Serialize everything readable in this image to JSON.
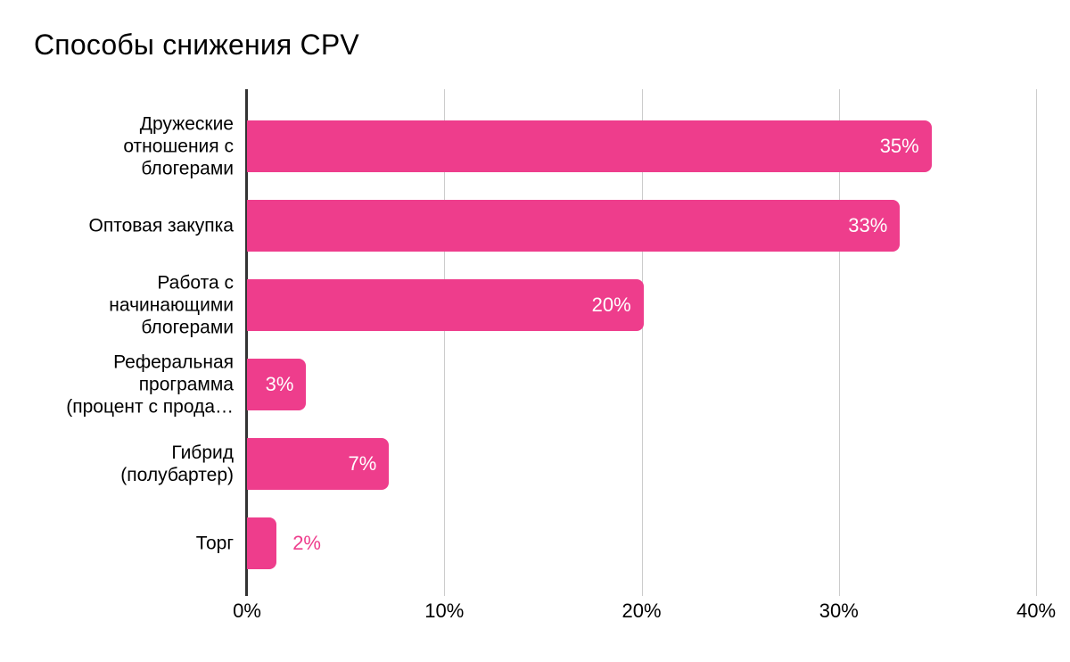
{
  "title": "Способы снижения CPV",
  "chart_data": {
    "type": "bar",
    "orientation": "horizontal",
    "title": "Способы снижения CPV",
    "categories": [
      "Дружеские отношения с блогерами",
      "Оптовая закупка",
      "Работа с начинающими блогерами",
      "Реферальная программа (процент с прода…",
      "Гибрид (полубартер)",
      "Торг"
    ],
    "category_display_lines": [
      "Дружеские\nотношения с\nблогерами",
      "Оптовая закупка",
      "Работа с\nначинающими\nблогерами",
      "Реферальная\nпрограмма\n(процент с прода…",
      "Гибрид\n(полубартер)",
      "Торг"
    ],
    "values": [
      35,
      33,
      20,
      3,
      7,
      2
    ],
    "value_labels": [
      "35%",
      "33%",
      "20%",
      "3%",
      "7%",
      "2%"
    ],
    "bar_lengths_pct": [
      34.7,
      33.1,
      20.1,
      3.0,
      7.2,
      1.5
    ],
    "value_label_position": [
      "inside",
      "inside",
      "inside",
      "inside",
      "inside",
      "outside"
    ],
    "xlabel": "",
    "ylabel": "",
    "x_ticks": [
      "0%",
      "10%",
      "20%",
      "30%",
      "40%"
    ],
    "x_tick_values": [
      0,
      10,
      20,
      30,
      40
    ],
    "xlim": [
      0,
      41
    ],
    "grid": true,
    "legend": "none",
    "colors": {
      "bar": "#EE3D8C",
      "value_label_inside": "#FFFFFF",
      "value_label_outside": "#EE3D8C",
      "gridline": "#CCCCCC",
      "axis_line": "#333333",
      "text": "#000000",
      "background": "#FFFFFF"
    }
  }
}
